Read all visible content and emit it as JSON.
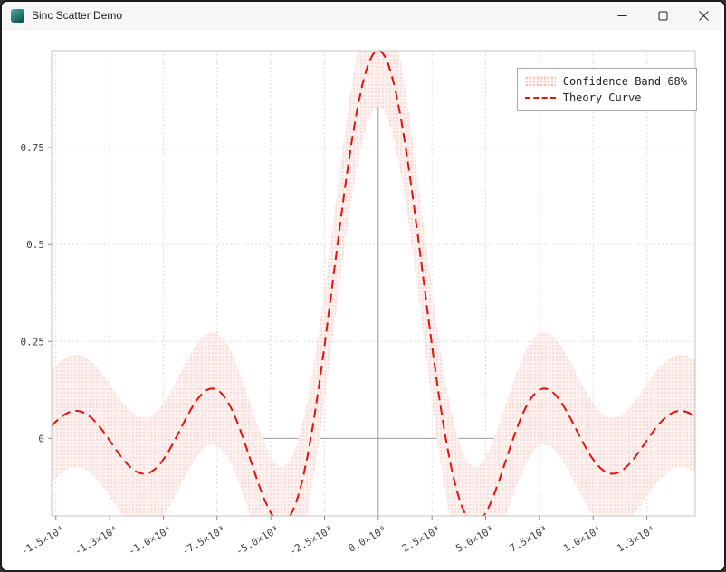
{
  "window": {
    "title": "Sinc Scatter Demo"
  },
  "icons": {
    "app_icon": "teal-app-square",
    "minimize_icon": "horizontal-line",
    "maximize_icon": "square-outline",
    "close_icon": "x-cross"
  },
  "chart_data": {
    "type": "line",
    "title": "Sinc Scatter Demo",
    "x_range": [
      -15200,
      14750
    ],
    "y_range": [
      -0.2,
      1.0
    ],
    "grid": true,
    "x_ticks": [
      {
        "value": -15000,
        "label": "-1.5×10⁴"
      },
      {
        "value": -12500,
        "label": "-1.3×10⁴"
      },
      {
        "value": -10000,
        "label": "-1.0×10⁴"
      },
      {
        "value": -7500,
        "label": "-7.5×10³"
      },
      {
        "value": -5000,
        "label": "-5.0×10³"
      },
      {
        "value": -2500,
        "label": "-2.5×10³"
      },
      {
        "value": 0,
        "label": "0.0×10⁰"
      },
      {
        "value": 2500,
        "label": "2.5×10³"
      },
      {
        "value": 5000,
        "label": "5.0×10³"
      },
      {
        "value": 7500,
        "label": "7.5×10³"
      },
      {
        "value": 10000,
        "label": "1.0×10⁴"
      },
      {
        "value": 12500,
        "label": "1.3×10⁴"
      }
    ],
    "y_ticks": [
      {
        "value": 0,
        "label": "0"
      },
      {
        "value": 0.25,
        "label": "0.25"
      },
      {
        "value": 0.5,
        "label": "0.5"
      },
      {
        "value": 0.75,
        "label": "0.75"
      }
    ],
    "curve": {
      "name": "Theory Curve",
      "function": "sinc",
      "formula": "y = sin(x/1000)/(x/1000)",
      "x_scale": 1000,
      "color": "#e3120b",
      "style": "dashed"
    },
    "band": {
      "name": "Confidence Band 68%",
      "half_width": 0.145,
      "fill_background": "#fdf1ef",
      "fill_dot": "#f2bcb6",
      "style": "dotted-fill"
    },
    "key_points": [
      {
        "x": 0,
        "y": 1.0,
        "note": "central maximum"
      },
      {
        "x": -4493,
        "y": -0.217
      },
      {
        "x": 4493,
        "y": -0.217
      },
      {
        "x": -7725,
        "y": 0.128
      },
      {
        "x": 7725,
        "y": 0.128
      },
      {
        "x": -10904,
        "y": -0.091
      },
      {
        "x": 10904,
        "y": -0.091
      },
      {
        "x": -14066,
        "y": 0.071
      },
      {
        "x": 14066,
        "y": 0.071
      },
      {
        "x": -3142,
        "y": 0,
        "note": "zero"
      },
      {
        "x": 3142,
        "y": 0,
        "note": "zero"
      },
      {
        "x": -6283,
        "y": 0,
        "note": "zero"
      },
      {
        "x": 6283,
        "y": 0,
        "note": "zero"
      },
      {
        "x": -9425,
        "y": 0,
        "note": "zero"
      },
      {
        "x": 9425,
        "y": 0,
        "note": "zero"
      },
      {
        "x": -12566,
        "y": 0,
        "note": "zero"
      },
      {
        "x": 12566,
        "y": 0,
        "note": "zero"
      }
    ],
    "legend": {
      "position": "top-right",
      "entries": [
        "Confidence Band 68%",
        "Theory Curve"
      ]
    },
    "colors": {
      "grid": "#d2d2d2",
      "axis_zero": "#9e9e9e",
      "frame": "#c4c4c4",
      "tick": "#8a8a8a",
      "text": "#3c3c3c"
    }
  }
}
